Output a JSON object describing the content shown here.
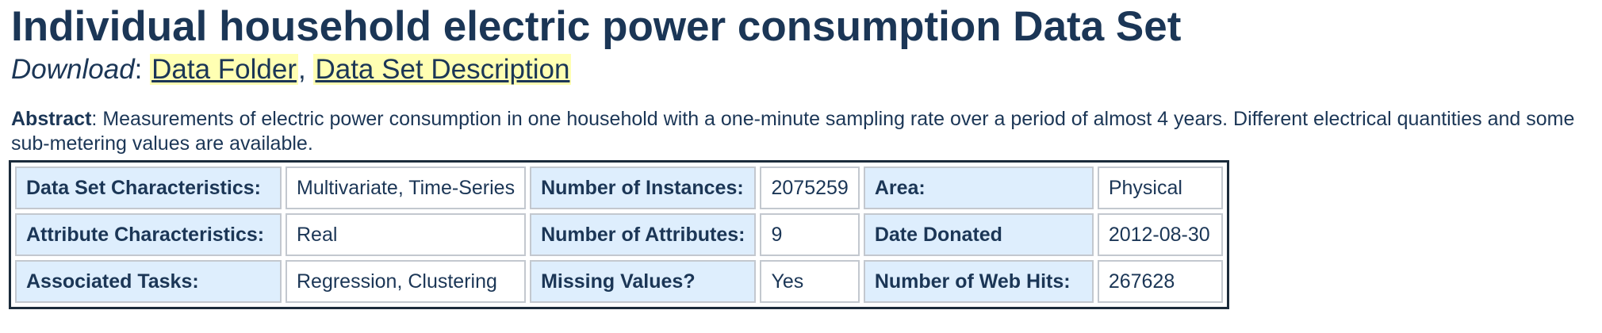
{
  "page": {
    "title": "Individual household electric power consumption Data Set"
  },
  "download": {
    "label": "Download",
    "separator": ":",
    "comma": ",",
    "links": [
      "Data Folder",
      "Data Set Description"
    ]
  },
  "abstract": {
    "label": "Abstract",
    "text": ": Measurements of electric power consumption in one household with a one-minute sampling rate over a period of almost 4 years. Different electrical quantities and some sub-metering values are available."
  },
  "characteristics": {
    "rows": [
      [
        {
          "label": "Data Set Characteristics:",
          "value": "Multivariate, Time-Series"
        },
        {
          "label": "Number of Instances:",
          "value": "2075259"
        },
        {
          "label": "Area:",
          "value": "Physical"
        }
      ],
      [
        {
          "label": "Attribute Characteristics:",
          "value": "Real"
        },
        {
          "label": "Number of Attributes:",
          "value": "9"
        },
        {
          "label": "Date Donated",
          "value": "2012-08-30"
        }
      ],
      [
        {
          "label": "Associated Tasks:",
          "value": "Regression, Clustering"
        },
        {
          "label": "Missing Values?",
          "value": "Yes"
        },
        {
          "label": "Number of Web Hits:",
          "value": "267628"
        }
      ]
    ]
  },
  "colors": {
    "text": "#1b3656",
    "link_highlight": "#ffffb3",
    "label_cell": "#deeefd"
  }
}
